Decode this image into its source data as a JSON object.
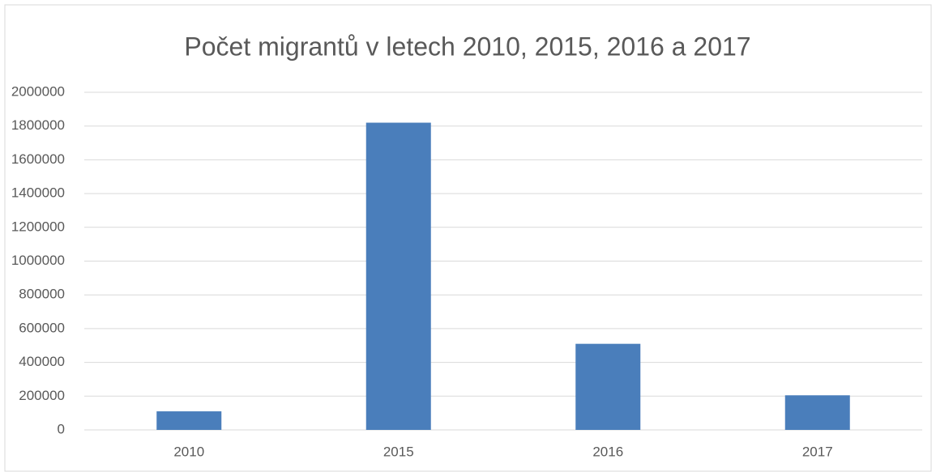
{
  "chart_data": {
    "type": "bar",
    "title": "Počet migrantů v letech 2010, 2015, 2016 a 2017",
    "categories": [
      "2010",
      "2015",
      "2016",
      "2017"
    ],
    "values": [
      110000,
      1820000,
      510000,
      205000
    ],
    "color": "#4a7ebb",
    "ylim": [
      0,
      2000000
    ],
    "yticks": [
      0,
      200000,
      400000,
      600000,
      800000,
      1000000,
      1200000,
      1400000,
      1600000,
      1800000,
      2000000
    ],
    "grid": true
  }
}
